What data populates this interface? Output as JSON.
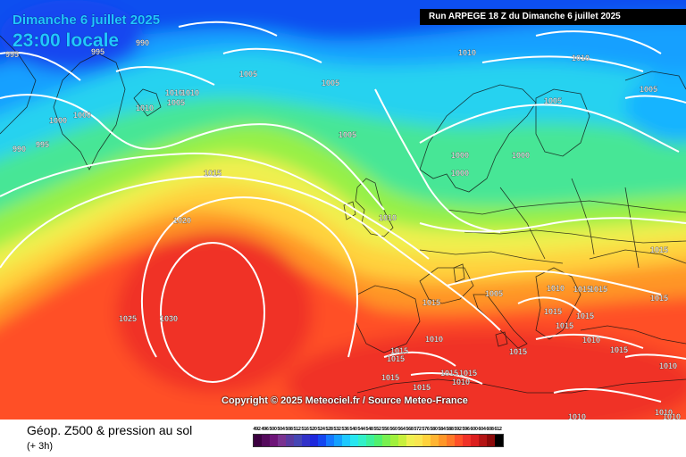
{
  "header": {
    "date_label": "Dimanche 6 juillet 2025",
    "time_label": "23:00 locale",
    "run_label": "Run ARPEGE 18 Z du Dimanche 6 juillet 2025"
  },
  "footer": {
    "title": "Géop. Z500 & pression au sol",
    "subtitle": "(+ 3h)",
    "copyright": "Copyright © 2025 Meteociel.fr / Source Meteo-France"
  },
  "legend": {
    "values": [
      "492",
      "496",
      "500",
      "504",
      "508",
      "512",
      "516",
      "520",
      "524",
      "528",
      "532",
      "536",
      "540",
      "544",
      "548",
      "552",
      "556",
      "560",
      "564",
      "568",
      "572",
      "576",
      "580",
      "584",
      "588",
      "592",
      "596",
      "600",
      "604",
      "608",
      "612"
    ],
    "colors": [
      "#3c0040",
      "#550a5c",
      "#6e1478",
      "#7a3290",
      "#5a3aa0",
      "#4646b4",
      "#3232c8",
      "#1e28dc",
      "#1446f0",
      "#1478ff",
      "#14a0ff",
      "#1ec8ff",
      "#28e6f0",
      "#32f0c8",
      "#3cf09a",
      "#50f06e",
      "#78f050",
      "#a0f03c",
      "#c8f03c",
      "#f0f050",
      "#fae650",
      "#ffd23c",
      "#ffb432",
      "#ff9628",
      "#ff7828",
      "#ff5028",
      "#f03228",
      "#dc1e1e",
      "#b41414",
      "#8c0a0a",
      "#000000"
    ]
  },
  "isobar_labels": [
    {
      "text": "995"
    },
    {
      "text": "990"
    },
    {
      "text": "995"
    },
    {
      "text": "1005"
    },
    {
      "text": "1005"
    },
    {
      "text": "1010"
    },
    {
      "text": "1010"
    },
    {
      "text": "1010"
    },
    {
      "text": "1000"
    },
    {
      "text": "1000"
    },
    {
      "text": "1010"
    },
    {
      "text": "1005"
    },
    {
      "text": "1005"
    },
    {
      "text": "1005"
    },
    {
      "text": "990"
    },
    {
      "text": "995"
    },
    {
      "text": "1000"
    },
    {
      "text": "1000"
    },
    {
      "text": "1000"
    },
    {
      "text": "1015"
    },
    {
      "text": "1010"
    },
    {
      "text": "1020"
    },
    {
      "text": "1010"
    },
    {
      "text": "1015"
    },
    {
      "text": "1005"
    },
    {
      "text": "1015"
    },
    {
      "text": "1015"
    },
    {
      "text": "1005"
    },
    {
      "text": "1015"
    },
    {
      "text": "1015"
    },
    {
      "text": "1025"
    },
    {
      "text": "1030"
    },
    {
      "text": "1015"
    },
    {
      "text": "1015"
    },
    {
      "text": "1010"
    },
    {
      "text": "1015"
    },
    {
      "text": "1010"
    },
    {
      "text": "1015"
    },
    {
      "text": "1015"
    },
    {
      "text": "1010"
    },
    {
      "text": "1015"
    },
    {
      "text": "1015"
    },
    {
      "text": "1010"
    },
    {
      "text": "1015"
    },
    {
      "text": "1015"
    },
    {
      "text": "1015"
    },
    {
      "text": "1015"
    },
    {
      "text": "1010"
    },
    {
      "text": "1010"
    },
    {
      "text": "1010"
    },
    {
      "text": "1010"
    }
  ]
}
